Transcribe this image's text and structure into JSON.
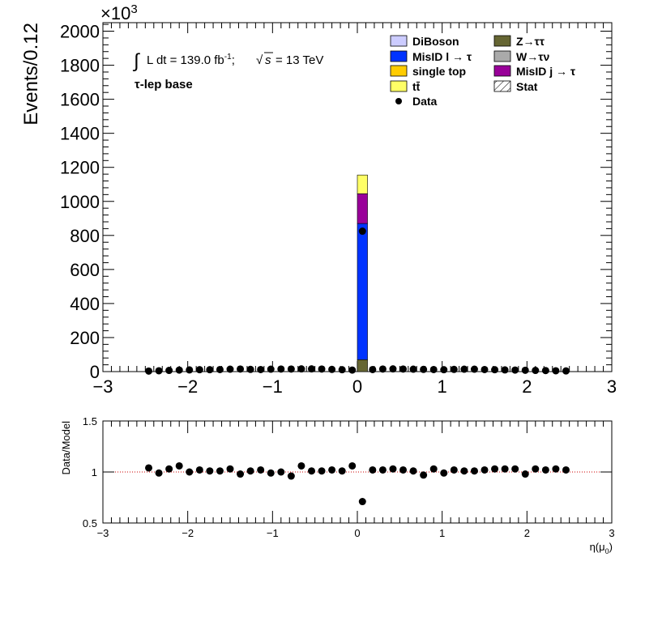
{
  "chart_data": [
    {
      "type": "bar",
      "stacked": true,
      "ylabel": "Events/0.12",
      "yexponent_label": "×10",
      "yexponent_power": "3",
      "ylim": [
        0,
        2050
      ],
      "xlim": [
        -3,
        3
      ],
      "yticks": [
        0,
        200,
        400,
        600,
        800,
        1000,
        1200,
        1400,
        1600,
        1800,
        2000
      ],
      "ytick_labels": [
        "0",
        "200",
        "400",
        "600",
        "800",
        "1000",
        "1200",
        "1400",
        "1600",
        "1800",
        "2000"
      ],
      "xticks": [
        -3,
        -2,
        -1,
        0,
        1,
        2,
        3
      ],
      "xtick_labels": [
        "−3",
        "−2",
        "−1",
        "0",
        "1",
        "2",
        "3"
      ],
      "lumi_prefix": "∫",
      "lumi_text": "L dt = 139.0 fb",
      "lumi_sup": "-1",
      "lumi_suffix": ";",
      "energy_prefix": "√",
      "energy_s": "s",
      "energy_text": "= 13 TeV",
      "region_label": "τ-lep base",
      "legend": [
        {
          "label": "DiBoson",
          "color": "#ccccff",
          "kind": "box"
        },
        {
          "label": "Z→ττ",
          "color": "#666633",
          "kind": "box"
        },
        {
          "label": "MisID l → τ",
          "color": "#0033ff",
          "kind": "box"
        },
        {
          "label": "W→τν",
          "color": "#aaaaaa",
          "kind": "box"
        },
        {
          "label": "single top",
          "color": "#ffcc00",
          "kind": "box"
        },
        {
          "label": "MisID j → τ",
          "color": "#990099",
          "kind": "box"
        },
        {
          "label": "tt̄",
          "color": "#ffff66",
          "kind": "box"
        },
        {
          "label": "Stat",
          "color": "#000000",
          "kind": "hatch"
        },
        {
          "label": "Data",
          "color": "#000000",
          "kind": "marker"
        }
      ],
      "central_bin": {
        "x_low": 0.0,
        "x_high": 0.12,
        "series": [
          {
            "name": "Z→ττ",
            "color": "#666633",
            "value": 70
          },
          {
            "name": "MisID l → τ",
            "color": "#0033ff",
            "value": 800
          },
          {
            "name": "MisID j → τ",
            "color": "#990099",
            "value": 175
          },
          {
            "name": "tt̄",
            "color": "#ffff66",
            "value": 110
          }
        ]
      },
      "data_points": {
        "x": [
          -2.46,
          -2.34,
          -2.22,
          -2.1,
          -1.98,
          -1.86,
          -1.74,
          -1.62,
          -1.5,
          -1.38,
          -1.26,
          -1.14,
          -1.02,
          -0.9,
          -0.78,
          -0.66,
          -0.54,
          -0.42,
          -0.3,
          -0.18,
          -0.06,
          0.06,
          0.18,
          0.3,
          0.42,
          0.54,
          0.66,
          0.78,
          0.9,
          1.02,
          1.14,
          1.26,
          1.38,
          1.5,
          1.62,
          1.74,
          1.86,
          1.98,
          2.1,
          2.22,
          2.34,
          2.46
        ],
        "y": [
          3,
          5,
          7,
          9,
          10,
          11,
          11,
          12,
          14,
          15,
          13,
          12,
          14,
          15,
          15,
          16,
          16,
          15,
          13,
          11,
          9,
          825,
          12,
          15,
          16,
          15,
          14,
          13,
          12,
          11,
          13,
          14,
          14,
          12,
          11,
          10,
          9,
          8,
          7,
          6,
          5,
          4
        ]
      }
    },
    {
      "type": "scatter",
      "ylabel": "Data/Model",
      "xlabel": "η(μ",
      "xlabel_sub": "0",
      "xlabel_close": ")",
      "ylim": [
        0.5,
        1.5
      ],
      "xlim": [
        -3,
        3
      ],
      "yticks": [
        0.5,
        1,
        1.5
      ],
      "ytick_labels": [
        "0.5",
        "1",
        "1.5"
      ],
      "xticks": [
        -3,
        -2,
        -1,
        0,
        1,
        2,
        3
      ],
      "xtick_labels": [
        "−3",
        "−2",
        "−1",
        "0",
        "1",
        "2",
        "3"
      ],
      "reference_line": 1,
      "x": [
        -2.46,
        -2.34,
        -2.22,
        -2.1,
        -1.98,
        -1.86,
        -1.74,
        -1.62,
        -1.5,
        -1.38,
        -1.26,
        -1.14,
        -1.02,
        -0.9,
        -0.78,
        -0.66,
        -0.54,
        -0.42,
        -0.3,
        -0.18,
        -0.06,
        0.06,
        0.18,
        0.3,
        0.42,
        0.54,
        0.66,
        0.78,
        0.9,
        1.02,
        1.14,
        1.26,
        1.38,
        1.5,
        1.62,
        1.74,
        1.86,
        1.98,
        2.1,
        2.22,
        2.34,
        2.46
      ],
      "y": [
        1.04,
        0.99,
        1.03,
        1.06,
        1.0,
        1.02,
        1.01,
        1.01,
        1.03,
        0.98,
        1.01,
        1.02,
        0.99,
        1.0,
        0.96,
        1.06,
        1.01,
        1.01,
        1.02,
        1.01,
        1.06,
        0.71,
        1.02,
        1.02,
        1.03,
        1.02,
        1.01,
        0.97,
        1.03,
        0.99,
        1.02,
        1.01,
        1.01,
        1.02,
        1.03,
        1.03,
        1.03,
        0.98,
        1.03,
        1.02,
        1.03,
        1.02
      ]
    }
  ]
}
